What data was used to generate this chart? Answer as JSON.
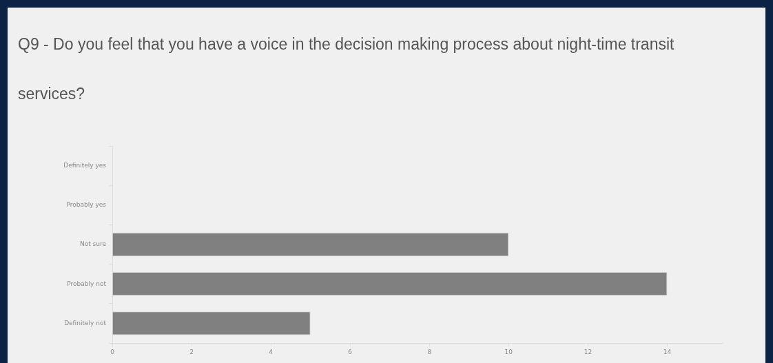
{
  "chart_data": {
    "type": "bar",
    "orientation": "horizontal",
    "title": "Q9 - Do you feel that you have a voice in the decision making process about night-time transit services?",
    "categories": [
      "Definitely yes",
      "Probably yes",
      "Not sure",
      "Probably not",
      "Definitely not"
    ],
    "values": [
      0,
      0,
      10,
      14,
      5
    ],
    "color": "#808080",
    "xlim": [
      0,
      15.4
    ],
    "xticks": [
      0,
      2,
      4,
      6,
      8,
      10,
      12,
      14
    ],
    "legend": false
  }
}
